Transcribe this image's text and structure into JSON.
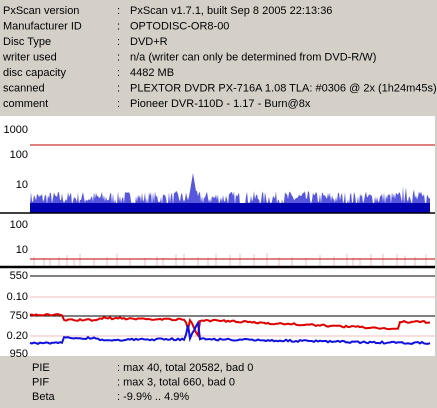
{
  "info": {
    "rows": [
      {
        "label": "PxScan version",
        "sep": ":",
        "value": "PxScan v1.7.1, built Sep  8 2005 22:13:36"
      },
      {
        "label": "Manufacturer ID",
        "sep": ":",
        "value": "OPTODISC-OR8-00"
      },
      {
        "label": "Disc Type",
        "sep": ":",
        "value": "DVD+R"
      },
      {
        "label": "writer used",
        "sep": ":",
        "value": "n/a (writer can only be determined from DVD-R/W)"
      },
      {
        "label": "disc capacity",
        "sep": ":",
        "value": "4482 MB"
      },
      {
        "label": "scanned",
        "sep": ":",
        "value": "PLEXTOR DVDR PX-716A 1.08 TLA: #0306 @ 2x (1h24m45s)"
      },
      {
        "label": "comment",
        "sep": ":",
        "value": "Pioneer DVR-110D - 1.17 - Burn@8x"
      }
    ]
  },
  "panels": {
    "pie": {
      "ticks": [
        "1000",
        "100",
        "10"
      ]
    },
    "pif": {
      "ticks": [
        "100",
        "10"
      ]
    },
    "jitter": {
      "ticks": [
        "550",
        "0.10",
        "750",
        "0.20",
        "950"
      ]
    }
  },
  "summary": [
    {
      "label": "PIE",
      "value": ": max 40, total 20582, bad 0"
    },
    {
      "label": "PIF",
      "value": ": max 3, total 660, bad 0"
    },
    {
      "label": "Beta",
      "value": ": -9.9% .. 4.9%"
    }
  ]
}
